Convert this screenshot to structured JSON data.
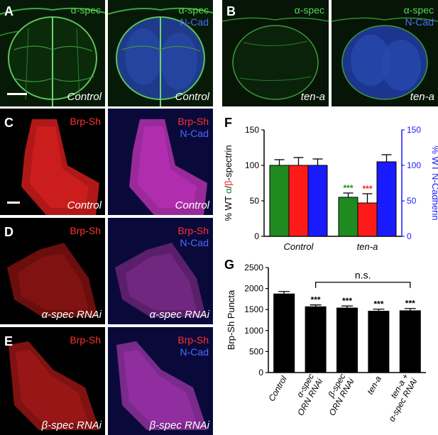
{
  "panels": {
    "A": {
      "letter": "A",
      "left": {
        "channel1": "α-spec",
        "caption": "Control"
      },
      "right": {
        "channel1": "α-spec",
        "channel2": "N-Cad",
        "caption": "Control"
      }
    },
    "B": {
      "letter": "B",
      "left": {
        "channel1": "α-spec",
        "caption": "ten-a"
      },
      "right": {
        "channel1": "α-spec",
        "channel2": "N-Cad",
        "caption": "ten-a"
      }
    },
    "C": {
      "letter": "C",
      "left": {
        "channel1": "Brp-Sh",
        "caption": "Control"
      },
      "right": {
        "channel1": "Brp-Sh",
        "channel2": "N-Cad",
        "caption": "Control"
      }
    },
    "D": {
      "letter": "D",
      "left": {
        "channel1": "Brp-Sh",
        "caption": "α-spec RNAi"
      },
      "right": {
        "channel1": "Brp-Sh",
        "channel2": "N-Cad",
        "caption": "α-spec RNAi"
      }
    },
    "E": {
      "letter": "E",
      "left": {
        "channel1": "Brp-Sh",
        "caption": "β-spec RNAi"
      },
      "right": {
        "channel1": "Brp-Sh",
        "channel2": "N-Cad",
        "caption": "β-spec RNAi"
      }
    }
  },
  "chart_data": [
    {
      "panel": "F",
      "type": "bar",
      "categories": [
        "Control",
        "ten-a"
      ],
      "series": [
        {
          "name": "α-spectrin",
          "color": "#1f8a1f",
          "values": [
            100,
            55
          ],
          "errors": [
            8,
            6
          ]
        },
        {
          "name": "β-spectrin",
          "color": "#ff1a1a",
          "values": [
            100,
            47
          ],
          "errors": [
            11,
            13
          ]
        },
        {
          "name": "N-Cadherin",
          "color": "#1a1aff",
          "values": [
            100,
            105
          ],
          "errors": [
            9,
            10
          ]
        }
      ],
      "ylabel_left_parts": [
        "% WT ",
        "α",
        "/",
        "β",
        "-spectrin"
      ],
      "ylabel_right": "% WT N-Cadherin",
      "ylim": [
        0,
        150
      ],
      "yticks": [
        "0",
        "50",
        "100",
        "150"
      ],
      "annotations": [
        "***",
        "***"
      ]
    },
    {
      "panel": "G",
      "type": "bar",
      "categories": [
        "Control",
        "α-spec ORN RNAi",
        "β-spec ORN RNAi",
        "ten-a",
        "ten-a + α-spec RNAi"
      ],
      "tick_label_lines": [
        [
          "Control"
        ],
        [
          "α-spec",
          "ORN RNAi"
        ],
        [
          "β-spec",
          "ORN RNAi"
        ],
        [
          "ten-a"
        ],
        [
          "ten-a +",
          "α-spec RNAi"
        ]
      ],
      "values": [
        1880,
        1575,
        1545,
        1470,
        1480
      ],
      "errors": [
        50,
        35,
        40,
        40,
        45
      ],
      "significance": [
        "",
        "***",
        "***",
        "***",
        "***"
      ],
      "bracket_label": "n.s.",
      "ylabel": "Brp-Sh Puncta",
      "ylim": [
        0,
        2500
      ],
      "yticks": [
        "0",
        "500",
        "1000",
        "1500",
        "2000",
        "2500"
      ]
    }
  ]
}
